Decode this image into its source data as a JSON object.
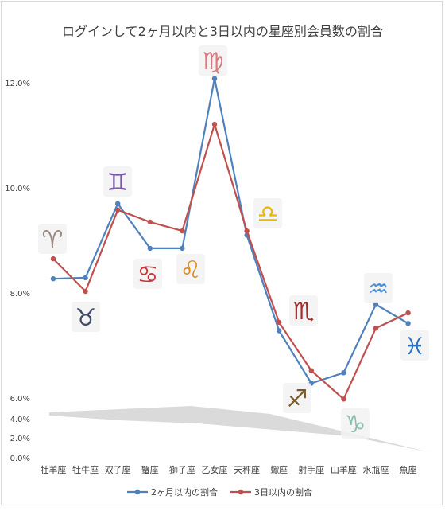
{
  "chart_data": {
    "type": "line",
    "title": "ログインして2ヶ月以内と3日以内の星座別会員数の割合",
    "categories": [
      "牡羊座",
      "牡牛座",
      "双子座",
      "蟹座",
      "獅子座",
      "乙女座",
      "天秤座",
      "蠍座",
      "射手座",
      "山羊座",
      "水瓶座",
      "魚座"
    ],
    "y_ticks_upper": [
      "12.0%",
      "10.0%",
      "8.0%",
      "6.0%"
    ],
    "y_ticks_lower": [
      "4.0%",
      "2.0%",
      "0.0%"
    ],
    "series": [
      {
        "name": "2ヶ月以内の割合",
        "color": "#4f81bd",
        "values": [
          8.27,
          8.29,
          9.7,
          8.85,
          8.85,
          12.08,
          9.1,
          7.28,
          6.28,
          6.48,
          7.78,
          7.42
        ]
      },
      {
        "name": "3日以内の割合",
        "color": "#c0504d",
        "values": [
          8.65,
          8.03,
          9.58,
          9.35,
          9.18,
          11.21,
          9.18,
          7.44,
          6.52,
          5.98,
          7.33,
          7.62
        ]
      }
    ],
    "axis": {
      "upper_range": [
        6.0,
        12.0
      ],
      "lower_range": [
        0.0,
        4.0
      ],
      "broken": true
    },
    "grid": false,
    "legend_position": "bottom"
  },
  "zodiac_icons": [
    {
      "name": "aries-icon",
      "glyph": "♈",
      "color": "#9b8a82"
    },
    {
      "name": "taurus-icon",
      "glyph": "♉",
      "color": "#3f4a6b"
    },
    {
      "name": "gemini-icon",
      "glyph": "♊",
      "color": "#7a5aa8"
    },
    {
      "name": "cancer-icon",
      "glyph": "♋",
      "color": "#c23838"
    },
    {
      "name": "leo-icon",
      "glyph": "♌",
      "color": "#e08a1a"
    },
    {
      "name": "virgo-icon",
      "glyph": "♍",
      "color": "#d87b80"
    },
    {
      "name": "libra-icon",
      "glyph": "♎",
      "color": "#e6b800"
    },
    {
      "name": "scorpio-icon",
      "glyph": "♏",
      "color": "#a52a2a"
    },
    {
      "name": "sagittarius-icon",
      "glyph": "♐",
      "color": "#7a5a2a"
    },
    {
      "name": "capricorn-icon",
      "glyph": "♑",
      "color": "#8abfb0"
    },
    {
      "name": "aquarius-icon",
      "glyph": "♒",
      "color": "#4a90d9"
    },
    {
      "name": "pisces-icon",
      "glyph": "♓",
      "color": "#2a6fbf"
    }
  ]
}
